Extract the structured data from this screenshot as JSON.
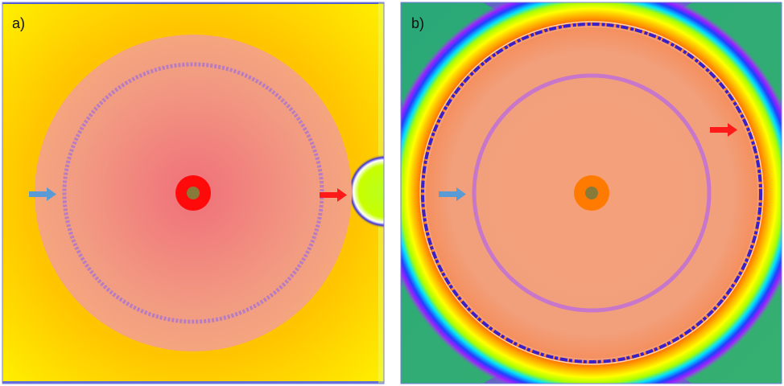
{
  "panels": [
    {
      "label": "a)"
    },
    {
      "label": "b)"
    }
  ],
  "colors": {
    "arrow_inner": "#5b9bd5",
    "arrow_outer": "#ff1a1a",
    "core_a": "#ff0a0a",
    "core_b": "#ff7a00",
    "center_dot": "#8a7a3a"
  }
}
